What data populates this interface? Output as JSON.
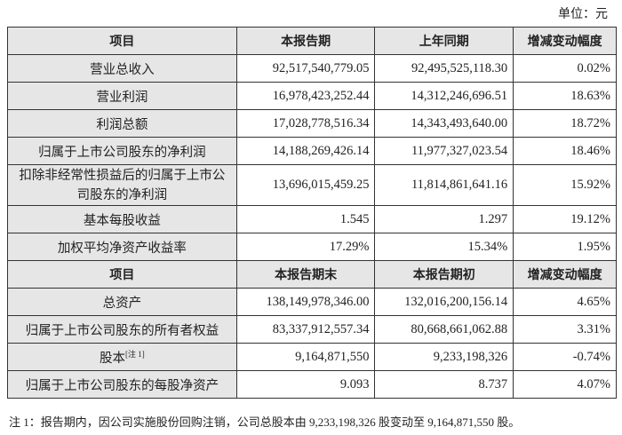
{
  "unit": "单位：元",
  "header1": [
    "项目",
    "本报告期",
    "上年同期",
    "增减变动幅度"
  ],
  "rows1": [
    [
      "营业总收入",
      "92,517,540,779.05",
      "92,495,525,118.30",
      "0.02%"
    ],
    [
      "营业利润",
      "16,978,423,252.44",
      "14,312,246,696.51",
      "18.63%"
    ],
    [
      "利润总额",
      "17,028,778,516.34",
      "14,343,493,640.00",
      "18.72%"
    ],
    [
      "归属于上市公司股东的净利润",
      "14,188,269,426.14",
      "11,977,327,023.54",
      "18.46%"
    ],
    [
      "扣除非经常性损益后的归属于上市公司股东的净利润",
      "13,696,015,459.25",
      "11,814,861,641.16",
      "15.92%"
    ],
    [
      "基本每股收益",
      "1.545",
      "1.297",
      "19.12%"
    ],
    [
      "加权平均净资产收益率",
      "17.29%",
      "15.34%",
      "1.95%"
    ]
  ],
  "header2": [
    "项目",
    "本报告期末",
    "本报告期初",
    "增减变动幅度"
  ],
  "rows2": [
    [
      "总资产",
      "138,149,978,346.00",
      "132,016,200,156.14",
      "4.65%"
    ],
    [
      "归属于上市公司股东的所有者权益",
      "83,337,912,557.34",
      "80,668,661,062.88",
      "3.31%"
    ],
    [
      "股本",
      "9,164,871,550",
      "9,233,198,326",
      "-0.74%"
    ],
    [
      "归属于上市公司股东的每股净资产",
      "9.093",
      "8.737",
      "4.07%"
    ]
  ],
  "share_capital_note_ref": "[注 1]",
  "footnote": "注 1：报告期内，因公司实施股份回购注销，公司总股本由 9,233,198,326 股变动至 9,164,871,550 股。"
}
